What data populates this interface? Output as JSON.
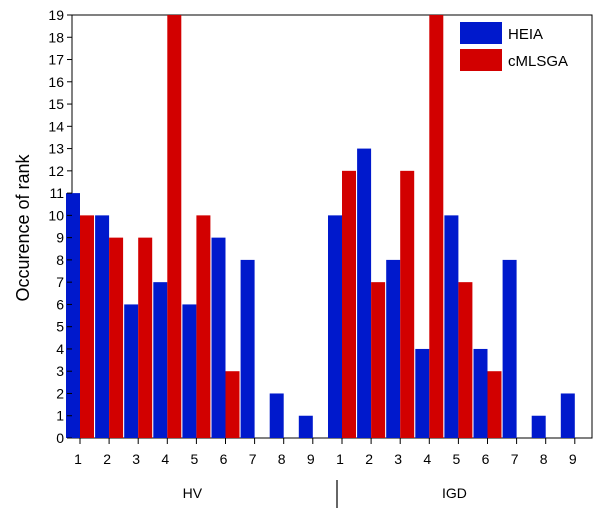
{
  "chart_data": {
    "type": "bar",
    "ylabel": "Occurence of rank",
    "ylim": [
      0,
      19
    ],
    "yticks": [
      0,
      1,
      2,
      3,
      4,
      5,
      6,
      7,
      8,
      9,
      10,
      11,
      12,
      13,
      14,
      15,
      16,
      17,
      18,
      19
    ],
    "groups": [
      {
        "label": "HV",
        "categories": [
          "1",
          "2",
          "3",
          "4",
          "5",
          "6",
          "7",
          "8",
          "9"
        ],
        "series": [
          {
            "name": "HEIA",
            "values": [
              11,
              10,
              6,
              7,
              6,
              9,
              8,
              2,
              1
            ]
          },
          {
            "name": "cMLSGA",
            "values": [
              10,
              9,
              9,
              19,
              10,
              3,
              0,
              0,
              0
            ]
          }
        ]
      },
      {
        "label": "IGD",
        "categories": [
          "1",
          "2",
          "3",
          "4",
          "5",
          "6",
          "7",
          "8",
          "9"
        ],
        "series": [
          {
            "name": "HEIA",
            "values": [
              10,
              13,
              8,
              4,
              10,
              4,
              8,
              1,
              2
            ]
          },
          {
            "name": "cMLSGA",
            "values": [
              12,
              7,
              12,
              19,
              7,
              3,
              0,
              0,
              0
            ]
          }
        ]
      }
    ],
    "legend": {
      "position": "top-right",
      "entries": [
        {
          "name": "HEIA",
          "color": "#0019cc"
        },
        {
          "name": "cMLSGA",
          "color": "#d20000"
        }
      ]
    }
  }
}
